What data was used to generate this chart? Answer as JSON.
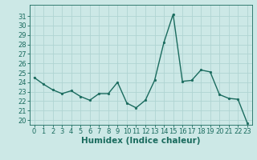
{
  "x": [
    0,
    1,
    2,
    3,
    4,
    5,
    6,
    7,
    8,
    9,
    10,
    11,
    12,
    13,
    14,
    15,
    16,
    17,
    18,
    19,
    20,
    21,
    22,
    23
  ],
  "y": [
    24.5,
    23.8,
    23.2,
    22.8,
    23.1,
    22.5,
    22.1,
    22.8,
    22.8,
    24.0,
    21.8,
    21.3,
    22.1,
    24.2,
    28.2,
    31.2,
    24.1,
    24.2,
    25.3,
    25.1,
    22.7,
    22.3,
    22.2,
    19.7
  ],
  "line_color": "#1a6b5e",
  "marker": "o",
  "marker_size": 2.0,
  "line_width": 1.0,
  "bg_color": "#cce8e6",
  "grid_color": "#b0d4d2",
  "xlabel": "Humidex (Indice chaleur)",
  "ylim": [
    19.5,
    32.2
  ],
  "xlim": [
    -0.5,
    23.5
  ],
  "yticks": [
    20,
    21,
    22,
    23,
    24,
    25,
    26,
    27,
    28,
    29,
    30,
    31
  ],
  "xticks": [
    0,
    1,
    2,
    3,
    4,
    5,
    6,
    7,
    8,
    9,
    10,
    11,
    12,
    13,
    14,
    15,
    16,
    17,
    18,
    19,
    20,
    21,
    22,
    23
  ],
  "tick_color": "#1a6b5e",
  "label_color": "#1a6b5e",
  "xlabel_fontsize": 7.5,
  "tick_fontsize": 6.0
}
